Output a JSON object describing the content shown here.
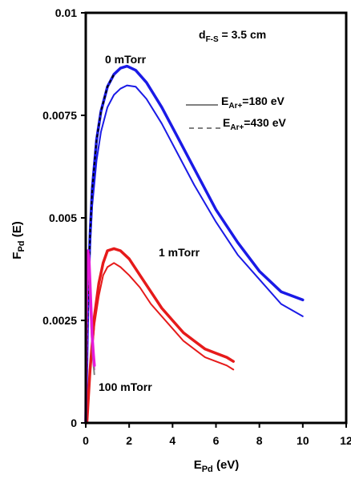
{
  "chart_data": {
    "type": "line",
    "title": "",
    "xlabel": {
      "main": "E",
      "sub": "Pd",
      "suffix": " (eV)"
    },
    "ylabel": {
      "main": "F",
      "sub": "Pd",
      "suffix": " (E)"
    },
    "xlim": [
      0,
      12
    ],
    "ylim": [
      0,
      0.01
    ],
    "xticks": [
      0,
      2,
      4,
      6,
      8,
      10,
      12
    ],
    "yticks": [
      0,
      0.0025,
      0.005,
      0.0075,
      0.01
    ],
    "xtick_labels": [
      "0",
      "2",
      "4",
      "6",
      "8",
      "10",
      "12"
    ],
    "ytick_labels": [
      "0",
      "0.0025",
      "0.005",
      "0.0075",
      "0.01"
    ],
    "grid": false,
    "annotations": {
      "distance": {
        "main": "d",
        "sub": "F-S",
        "suffix": " = 3.5 cm"
      },
      "pressure_0": "0 mTorr",
      "pressure_1": "1 mTorr",
      "pressure_100": "100 mTorr"
    },
    "legend": {
      "placement": "top-right",
      "entries": [
        {
          "style": "solid",
          "main": "E",
          "sub": "Ar+",
          "suffix": "=180 eV"
        },
        {
          "style": "dashed",
          "main": "E",
          "sub": "Ar+",
          "suffix": "=430 eV"
        }
      ]
    },
    "colors": {
      "pressure_0": "#1a1ae6",
      "pressure_1": "#e61a1a",
      "pressure_100": "#e61ad9",
      "pressure_100_alt": "#808080",
      "axes": "#000000"
    },
    "series": [
      {
        "group": "pressure_0",
        "energy_ev": 180,
        "x": [
          0.0,
          0.1,
          0.2,
          0.3,
          0.5,
          0.7,
          1.0,
          1.3,
          1.6,
          1.9,
          2.3,
          2.8,
          3.5,
          4.2,
          5.0,
          6.0,
          7.0,
          8.0,
          9.0,
          10.0
        ],
        "y": [
          0.0,
          0.0028,
          0.0043,
          0.0053,
          0.0064,
          0.0071,
          0.0077,
          0.008,
          0.00815,
          0.00823,
          0.0082,
          0.0079,
          0.0073,
          0.0066,
          0.0058,
          0.0049,
          0.0041,
          0.0035,
          0.0029,
          0.0026
        ]
      },
      {
        "group": "pressure_0",
        "energy_ev": 430,
        "x": [
          0.0,
          0.1,
          0.2,
          0.3,
          0.5,
          0.7,
          1.0,
          1.3,
          1.6,
          1.9,
          2.3,
          2.8,
          3.5,
          4.2,
          5.0,
          6.0,
          7.0,
          8.0,
          9.0,
          10.0
        ],
        "y": [
          0.0,
          0.003,
          0.0046,
          0.0057,
          0.0069,
          0.0076,
          0.0082,
          0.0085,
          0.00865,
          0.0087,
          0.0086,
          0.0083,
          0.0077,
          0.007,
          0.0062,
          0.0052,
          0.0044,
          0.0037,
          0.0032,
          0.003
        ]
      },
      {
        "group": "pressure_1",
        "energy_ev": 180,
        "x": [
          0.05,
          0.2,
          0.4,
          0.6,
          0.8,
          1.0,
          1.3,
          1.6,
          2.0,
          2.5,
          3.0,
          3.5,
          4.0,
          4.5,
          5.0,
          5.5,
          6.0,
          6.5,
          6.8
        ],
        "y": [
          0.0,
          0.0012,
          0.0024,
          0.0031,
          0.0036,
          0.0038,
          0.0039,
          0.0038,
          0.0036,
          0.0033,
          0.0029,
          0.0026,
          0.0023,
          0.002,
          0.0018,
          0.0016,
          0.0015,
          0.0014,
          0.0013
        ]
      },
      {
        "group": "pressure_1",
        "energy_ev": 430,
        "x": [
          0.05,
          0.2,
          0.4,
          0.6,
          0.8,
          1.0,
          1.3,
          1.6,
          2.0,
          2.5,
          3.0,
          3.5,
          4.0,
          4.5,
          5.0,
          5.5,
          6.0,
          6.5,
          6.8
        ],
        "y": [
          0.0,
          0.0013,
          0.0026,
          0.0034,
          0.0039,
          0.0042,
          0.00425,
          0.0042,
          0.004,
          0.0036,
          0.0032,
          0.0028,
          0.0025,
          0.0022,
          0.002,
          0.0018,
          0.0017,
          0.0016,
          0.0015
        ]
      },
      {
        "group": "pressure_100",
        "energy_ev": 180,
        "x": [
          0.0,
          0.02,
          0.05,
          0.08,
          0.1,
          0.15,
          0.2,
          0.25,
          0.3,
          0.35,
          0.4
        ],
        "y": [
          0.0,
          0.0015,
          0.0032,
          0.004,
          0.0041,
          0.0039,
          0.0033,
          0.0026,
          0.002,
          0.0016,
          0.0013
        ]
      },
      {
        "group": "pressure_100",
        "energy_ev": 430,
        "x": [
          0.0,
          0.02,
          0.05,
          0.08,
          0.1,
          0.15,
          0.2,
          0.25,
          0.3,
          0.35,
          0.4
        ],
        "y": [
          0.0,
          0.0016,
          0.0034,
          0.0041,
          0.0042,
          0.004,
          0.0034,
          0.0027,
          0.0021,
          0.0017,
          0.0014
        ]
      }
    ]
  }
}
